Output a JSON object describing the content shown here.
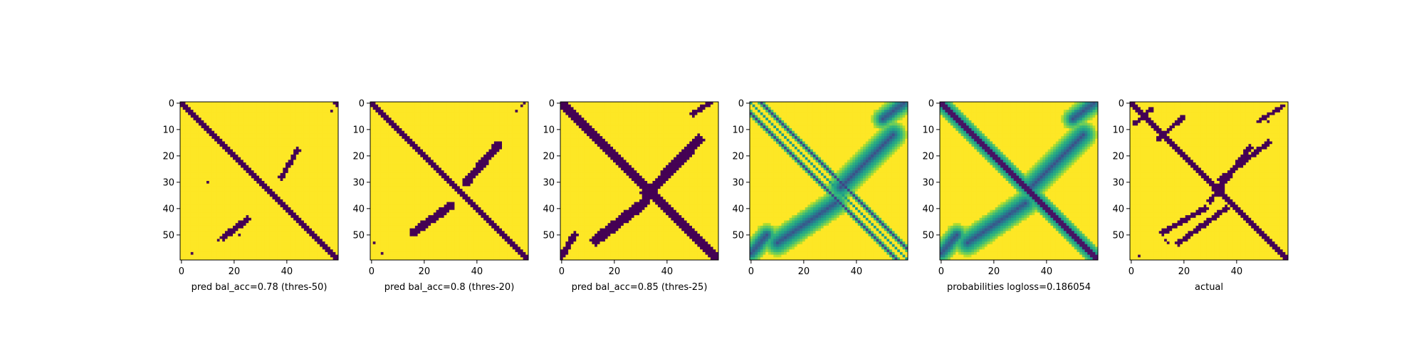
{
  "chart_data": [
    {
      "type": "heatmap",
      "title": "pred bal_acc=0.78 (thres-50)",
      "mode": "binary",
      "size": 60,
      "xlim": [
        0,
        59
      ],
      "ylim": [
        59,
        0
      ],
      "xticks": [
        0,
        20,
        40
      ],
      "yticks": [
        0,
        10,
        20,
        30,
        40,
        50
      ],
      "diag_halfwidth": 1.2,
      "blobs": [
        {
          "x": 60,
          "y": 0,
          "w": 2
        },
        {
          "x": 10,
          "y": 30,
          "w": 0.5
        }
      ],
      "anti_diag": [
        {
          "x0": 16,
          "y0": 51,
          "x1": 25,
          "y1": 44,
          "w": 1.2
        },
        {
          "x0": 38,
          "y0": 28,
          "x1": 44,
          "y1": 18,
          "w": 1.0
        }
      ],
      "speckles": [
        [
          57,
          3
        ],
        [
          44,
          17
        ],
        [
          4,
          57
        ],
        [
          22,
          50
        ],
        [
          14,
          52
        ]
      ]
    },
    {
      "type": "heatmap",
      "title": "pred bal_acc=0.8 (thres-20)",
      "mode": "binary",
      "size": 60,
      "xlim": [
        0,
        59
      ],
      "ylim": [
        59,
        0
      ],
      "xticks": [
        0,
        20,
        40
      ],
      "yticks": [
        0,
        10,
        20,
        30,
        40,
        50
      ],
      "diag_halfwidth": 1.5,
      "blobs": [],
      "anti_diag": [
        {
          "x0": 16,
          "y0": 49,
          "x1": 30,
          "y1": 39,
          "w": 1.6
        },
        {
          "x0": 36,
          "y0": 30,
          "x1": 48,
          "y1": 16,
          "w": 1.6
        }
      ],
      "speckles": [
        [
          55,
          3
        ],
        [
          57,
          1
        ],
        [
          1,
          53
        ],
        [
          4,
          57
        ],
        [
          58,
          0
        ]
      ]
    },
    {
      "type": "heatmap",
      "title": "pred bal_acc=0.85 (thres-25)",
      "mode": "binary",
      "size": 60,
      "xlim": [
        0,
        59
      ],
      "ylim": [
        59,
        0
      ],
      "xticks": [
        0,
        20,
        40
      ],
      "yticks": [
        0,
        10,
        20,
        30,
        40,
        50
      ],
      "diag_halfwidth": 2.2,
      "blobs": [
        {
          "x": 33,
          "y": 34,
          "w": 3
        }
      ],
      "anti_diag": [
        {
          "x0": 13,
          "y0": 52,
          "x1": 31,
          "y1": 38,
          "w": 2.0
        },
        {
          "x0": 36,
          "y0": 31,
          "x1": 52,
          "y1": 14,
          "w": 2.0
        },
        {
          "x0": 0,
          "y0": 58,
          "x1": 5,
          "y1": 50,
          "w": 1.2
        },
        {
          "x0": 50,
          "y0": 4,
          "x1": 56,
          "y1": 0,
          "w": 1.0
        }
      ],
      "speckles": []
    },
    {
      "type": "heatmap",
      "title": "",
      "mode": "continuous",
      "size": 60,
      "xlim": [
        0,
        59
      ],
      "ylim": [
        59,
        0
      ],
      "xticks": [
        0,
        20,
        40
      ],
      "yticks": [
        0,
        10,
        20,
        30,
        40,
        50
      ],
      "offset_diagonals": [
        4,
        -4
      ],
      "anti_diag": [
        {
          "x0": 10,
          "y0": 53,
          "x1": 32,
          "y1": 38,
          "w": 2.6
        },
        {
          "x0": 34,
          "y0": 32,
          "x1": 54,
          "y1": 12,
          "w": 2.6
        },
        {
          "x0": 0,
          "y0": 57,
          "x1": 6,
          "y1": 50,
          "w": 1.8
        },
        {
          "x0": 50,
          "y0": 6,
          "x1": 58,
          "y1": 0,
          "w": 1.8
        }
      ]
    },
    {
      "type": "heatmap",
      "title": "probabilities logloss=0.186054",
      "mode": "continuous",
      "size": 60,
      "xlim": [
        0,
        59
      ],
      "ylim": [
        59,
        0
      ],
      "xticks": [
        0,
        20,
        40
      ],
      "yticks": [
        0,
        10,
        20,
        30,
        40,
        50
      ],
      "diag_halfwidth": 1.6,
      "anti_diag": [
        {
          "x0": 10,
          "y0": 53,
          "x1": 32,
          "y1": 38,
          "w": 2.6
        },
        {
          "x0": 34,
          "y0": 32,
          "x1": 54,
          "y1": 12,
          "w": 2.6
        },
        {
          "x0": 0,
          "y0": 57,
          "x1": 6,
          "y1": 50,
          "w": 1.8
        },
        {
          "x0": 50,
          "y0": 6,
          "x1": 58,
          "y1": 0,
          "w": 1.8
        }
      ]
    },
    {
      "type": "heatmap",
      "title": "actual",
      "mode": "binary",
      "size": 60,
      "xlim": [
        0,
        59
      ],
      "ylim": [
        59,
        0
      ],
      "xticks": [
        0,
        20,
        40
      ],
      "yticks": [
        0,
        10,
        20,
        30,
        40,
        50
      ],
      "diag_halfwidth": 1.3,
      "blobs": [
        {
          "x": 33,
          "y": 33,
          "w": 2
        }
      ],
      "anti_diag": [
        {
          "x0": 12,
          "y0": 49,
          "x1": 28,
          "y1": 40,
          "w": 1.0
        },
        {
          "x0": 30,
          "y0": 37,
          "x1": 45,
          "y1": 17,
          "w": 1.0
        },
        {
          "x0": 18,
          "y0": 53,
          "x1": 36,
          "y1": 40,
          "w": 1.0
        },
        {
          "x0": 34,
          "y0": 29,
          "x1": 52,
          "y1": 15,
          "w": 1.0
        },
        {
          "x0": 1,
          "y0": 8,
          "x1": 8,
          "y1": 2,
          "w": 0.8
        },
        {
          "x0": 10,
          "y0": 14,
          "x1": 20,
          "y1": 5,
          "w": 0.9
        },
        {
          "x0": 48,
          "y0": 7,
          "x1": 58,
          "y1": 1,
          "w": 0.8
        }
      ],
      "speckles": [
        [
          13,
          52
        ],
        [
          14,
          53
        ],
        [
          3,
          58
        ],
        [
          52,
          7
        ]
      ]
    }
  ],
  "colors": {
    "viridis_low": "#440154",
    "viridis_mid": "#21918c",
    "viridis_high": "#fde725",
    "axis": "#000000"
  }
}
